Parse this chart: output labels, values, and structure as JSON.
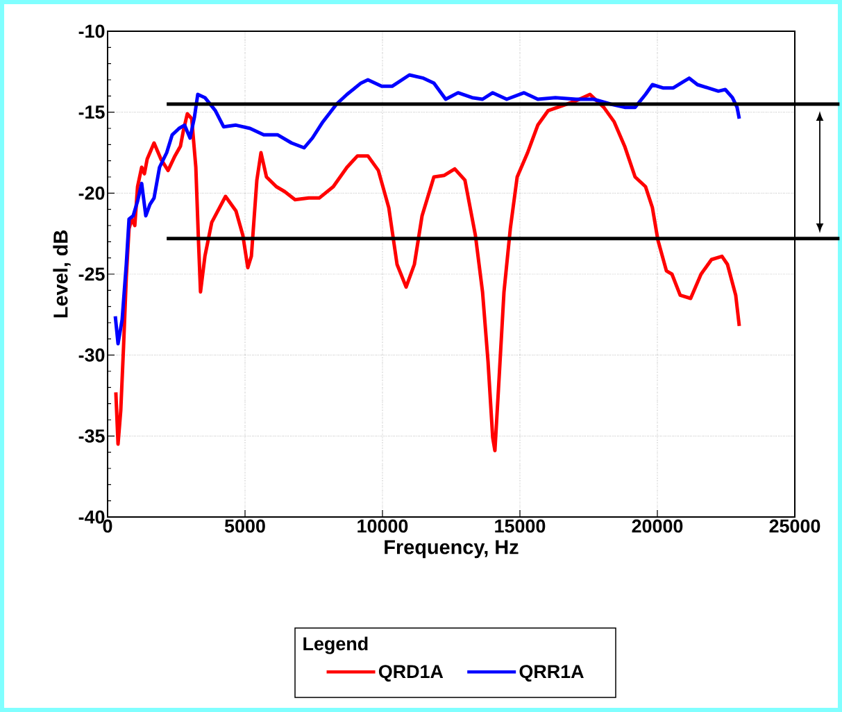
{
  "chart_data": {
    "type": "line",
    "xlabel": "Frequency, Hz",
    "ylabel": "Level, dB",
    "legend_title": "Legend",
    "xlim": [
      0,
      25000
    ],
    "xticks": [
      0,
      5000,
      10000,
      15000,
      20000,
      25000
    ],
    "ylim": [
      -40,
      -10
    ],
    "yticks": [
      -40,
      -35,
      -30,
      -25,
      -20,
      -15,
      -10
    ],
    "grid": true,
    "legend": "bottom",
    "marker": "none",
    "line_style": "solid",
    "ref_lines": [
      {
        "axis": "y",
        "value": -14.5,
        "color": "#000000"
      },
      {
        "axis": "y",
        "value": -22.8,
        "color": "#000000"
      }
    ],
    "series": [
      {
        "name": "QRD1A",
        "color": "#ff0000",
        "x": [
          300,
          380,
          480,
          580,
          680,
          780,
          880,
          990,
          1090,
          1240,
          1340,
          1440,
          1690,
          1940,
          2200,
          2450,
          2650,
          2750,
          2900,
          3060,
          3210,
          3310,
          3380,
          3540,
          3790,
          4290,
          4670,
          4920,
          5100,
          5230,
          5430,
          5580,
          5780,
          6140,
          6440,
          6820,
          7320,
          7700,
          8210,
          8710,
          9090,
          9470,
          9850,
          10230,
          10530,
          10860,
          11160,
          11440,
          11870,
          12250,
          12630,
          13000,
          13380,
          13640,
          13840,
          14010,
          14090,
          14220,
          14420,
          14650,
          14900,
          15280,
          15650,
          16030,
          16540,
          17040,
          17550,
          18050,
          18430,
          18810,
          19190,
          19570,
          19820,
          20020,
          20330,
          20530,
          20830,
          21210,
          21590,
          21970,
          22350,
          22550,
          22850,
          22980
        ],
        "values": [
          -32.3,
          -35.5,
          -33.4,
          -29.5,
          -25.2,
          -22.2,
          -21.6,
          -22.0,
          -19.6,
          -18.4,
          -18.8,
          -17.9,
          -16.9,
          -17.9,
          -18.6,
          -17.7,
          -17.1,
          -16.2,
          -15.1,
          -15.4,
          -18.4,
          -23.1,
          -26.1,
          -23.9,
          -21.8,
          -20.2,
          -21.1,
          -22.6,
          -24.6,
          -23.9,
          -19.2,
          -17.5,
          -19.0,
          -19.6,
          -19.9,
          -20.4,
          -20.3,
          -20.3,
          -19.6,
          -18.4,
          -17.7,
          -17.7,
          -18.6,
          -20.9,
          -24.4,
          -25.8,
          -24.4,
          -21.4,
          -19.0,
          -18.9,
          -18.5,
          -19.2,
          -22.6,
          -26.1,
          -30.4,
          -35.1,
          -35.9,
          -32.1,
          -26.1,
          -22.2,
          -19.0,
          -17.5,
          -15.8,
          -14.9,
          -14.6,
          -14.3,
          -13.9,
          -14.7,
          -15.6,
          -17.1,
          -19.0,
          -19.6,
          -20.9,
          -22.9,
          -24.8,
          -25.0,
          -26.3,
          -26.5,
          -25.0,
          -24.1,
          -23.9,
          -24.4,
          -26.3,
          -28.2
        ]
      },
      {
        "name": "QRR1A",
        "color": "#0000ff",
        "x": [
          280,
          380,
          530,
          680,
          780,
          930,
          1090,
          1240,
          1390,
          1540,
          1690,
          1890,
          2150,
          2350,
          2600,
          2800,
          3000,
          3160,
          3280,
          3540,
          3920,
          4220,
          4670,
          5180,
          5680,
          6190,
          6690,
          7150,
          7450,
          7830,
          8330,
          8710,
          9220,
          9470,
          9970,
          10350,
          10980,
          11490,
          11870,
          12300,
          12750,
          13260,
          13640,
          14010,
          14520,
          15150,
          15650,
          16290,
          17040,
          17680,
          18300,
          18810,
          19190,
          19570,
          19820,
          20200,
          20580,
          20960,
          21160,
          21460,
          21840,
          22220,
          22470,
          22730,
          22900,
          22980
        ],
        "values": [
          -27.6,
          -29.3,
          -27.8,
          -24.4,
          -21.6,
          -21.4,
          -20.5,
          -19.4,
          -21.4,
          -20.7,
          -20.3,
          -18.4,
          -17.5,
          -16.4,
          -16.0,
          -15.8,
          -16.6,
          -15.3,
          -13.9,
          -14.1,
          -14.9,
          -15.9,
          -15.8,
          -16.0,
          -16.4,
          -16.4,
          -16.9,
          -17.2,
          -16.6,
          -15.6,
          -14.5,
          -13.9,
          -13.2,
          -13.0,
          -13.4,
          -13.4,
          -12.7,
          -12.9,
          -13.2,
          -14.2,
          -13.8,
          -14.1,
          -14.2,
          -13.8,
          -14.2,
          -13.8,
          -14.2,
          -14.1,
          -14.2,
          -14.2,
          -14.5,
          -14.7,
          -14.7,
          -13.9,
          -13.3,
          -13.5,
          -13.5,
          -13.1,
          -12.9,
          -13.3,
          -13.5,
          -13.7,
          -13.6,
          -14.1,
          -14.7,
          -15.4
        ]
      }
    ]
  }
}
